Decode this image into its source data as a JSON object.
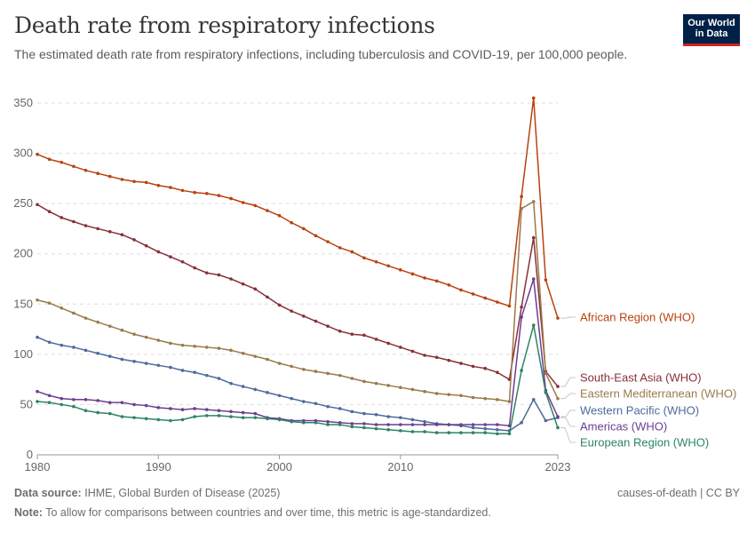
{
  "title": "Death rate from respiratory infections",
  "subtitle": "The estimated death rate from respiratory infections, including tuberculosis and COVID-19, per 100,000 people.",
  "logo": {
    "line1": "Our World",
    "line2": "in Data"
  },
  "footer": {
    "source_label": "Data source:",
    "source_text": "IHME, Global Burden of Disease (2025)",
    "note_label": "Note:",
    "note_text": "To allow for comparisons between countries and over time, this metric is age-standardized.",
    "right_text": "causes-of-death | CC BY"
  },
  "chart_data": {
    "type": "line",
    "title": "Death rate from respiratory infections",
    "xlabel": "",
    "ylabel": "",
    "ylim": [
      0,
      350
    ],
    "xlim": [
      1980,
      2023
    ],
    "y_ticks": [
      0,
      50,
      100,
      150,
      200,
      250,
      300,
      350
    ],
    "x_ticks": [
      1980,
      1990,
      2000,
      2010,
      2023
    ],
    "grid": true,
    "legend": "right-end labels",
    "x": [
      1980,
      1981,
      1982,
      1983,
      1984,
      1985,
      1986,
      1987,
      1988,
      1989,
      1990,
      1991,
      1992,
      1993,
      1994,
      1995,
      1996,
      1997,
      1998,
      1999,
      2000,
      2001,
      2002,
      2003,
      2004,
      2005,
      2006,
      2007,
      2008,
      2009,
      2010,
      2011,
      2012,
      2013,
      2014,
      2015,
      2016,
      2017,
      2018,
      2019,
      2020,
      2021,
      2022,
      2023
    ],
    "series": [
      {
        "name": "African Region (WHO)",
        "color": "#b8420f",
        "values": [
          299,
          294,
          291,
          287,
          283,
          280,
          277,
          274,
          272,
          271,
          268,
          266,
          263,
          261,
          260,
          258,
          255,
          251,
          248,
          243,
          238,
          231,
          225,
          218,
          212,
          206,
          202,
          196,
          192,
          188,
          184,
          180,
          176,
          173,
          169,
          164,
          160,
          156,
          152,
          148,
          257,
          355,
          174,
          136
        ]
      },
      {
        "name": "South-East Asia (WHO)",
        "color": "#883039",
        "values": [
          249,
          242,
          236,
          232,
          228,
          225,
          222,
          219,
          214,
          208,
          202,
          197,
          192,
          186,
          181,
          179,
          175,
          170,
          165,
          157,
          149,
          143,
          138,
          133,
          128,
          123,
          120,
          119,
          115,
          111,
          107,
          103,
          99,
          97,
          94,
          91,
          88,
          86,
          82,
          75,
          147,
          216,
          83,
          68
        ]
      },
      {
        "name": "Eastern Mediterranean (WHO)",
        "color": "#9a7a4a",
        "values": [
          154,
          151,
          146,
          141,
          136,
          132,
          128,
          124,
          120,
          117,
          114,
          111,
          109,
          108,
          107,
          106,
          104,
          101,
          98,
          95,
          91,
          88,
          85,
          83,
          81,
          79,
          76,
          73,
          71,
          69,
          67,
          65,
          63,
          61,
          60,
          59,
          57,
          56,
          55,
          53,
          245,
          252,
          81,
          56
        ]
      },
      {
        "name": "Western Pacific (WHO)",
        "color": "#4c6a9c",
        "values": [
          117,
          112,
          109,
          107,
          104,
          101,
          98,
          95,
          93,
          91,
          89,
          87,
          84,
          82,
          79,
          76,
          71,
          68,
          65,
          62,
          59,
          56,
          53,
          51,
          48,
          46,
          43,
          41,
          40,
          38,
          37,
          35,
          33,
          31,
          30,
          29,
          27,
          26,
          25,
          24,
          32,
          55,
          34,
          37
        ]
      },
      {
        "name": "Americas (WHO)",
        "color": "#6d3e91",
        "values": [
          63,
          59,
          56,
          55,
          55,
          54,
          52,
          52,
          50,
          49,
          47,
          46,
          45,
          46,
          45,
          44,
          43,
          42,
          41,
          37,
          36,
          34,
          34,
          34,
          33,
          32,
          31,
          31,
          30,
          30,
          30,
          30,
          30,
          30,
          30,
          30,
          30,
          30,
          30,
          29,
          137,
          175,
          64,
          38
        ]
      },
      {
        "name": "European Region (WHO)",
        "color": "#2c8465",
        "values": [
          53,
          52,
          50,
          48,
          44,
          42,
          41,
          38,
          37,
          36,
          35,
          34,
          35,
          38,
          39,
          39,
          38,
          37,
          37,
          36,
          35,
          33,
          32,
          32,
          30,
          30,
          28,
          27,
          26,
          25,
          24,
          23,
          23,
          22,
          22,
          22,
          22,
          22,
          21,
          21,
          84,
          129,
          62,
          27
        ]
      }
    ]
  }
}
